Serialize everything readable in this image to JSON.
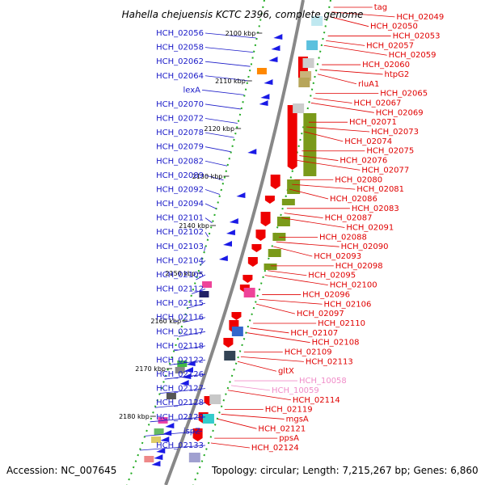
{
  "title": "Hahella chejuensis KCTC 2396, complete genome",
  "footer": {
    "accession": "Accession: NC_007645",
    "info": "Topology: circular; Length: 7,215,267 bp; Genes: 6,860"
  },
  "colors": {
    "blue_label": "#1a1ac8",
    "red_label": "#e00000",
    "pink_label": "#f08cc8",
    "backbone": "#888888",
    "tick": "#22aa22"
  },
  "kbp_ticks": [
    "2100 kbp",
    "2110 kbp",
    "2120 kbp",
    "2130 kbp",
    "2140 kbp",
    "2150 kbp",
    "2160 kbp",
    "2170 kbp",
    "2180 kbp"
  ],
  "left_labels": [
    "HCH_02056",
    "HCH_02058",
    "HCH_02062",
    "HCH_02064",
    "lexA",
    "HCH_02070",
    "HCH_02072",
    "HCH_02078",
    "HCH_02079",
    "HCH_02082",
    "HCH_02089",
    "HCH_02092",
    "HCH_02094",
    "HCH_02101",
    "HCH_02102",
    "HCH_02103",
    "HCH_02104",
    "HCH_02105",
    "HCH_02112",
    "HCH_02115",
    "HCH_02116",
    "HCH_02117",
    "HCH_02118",
    "HCH_02122",
    "HCH_02126",
    "HCH_02127",
    "HCH_02128",
    "HCH_02129",
    "ispZ",
    "HCH_02133"
  ],
  "right_labels": [
    "tag",
    "HCH_02049",
    "HCH_02050",
    "HCH_02053",
    "HCH_02057",
    "HCH_02059",
    "HCH_02060",
    "htpG2",
    "rluA1",
    "HCH_02065",
    "HCH_02067",
    "HCH_02069",
    "HCH_02071",
    "HCH_02073",
    "HCH_02074",
    "HCH_02075",
    "HCH_02076",
    "HCH_02077",
    "HCH_02080",
    "HCH_02081",
    "HCH_02086",
    "HCH_02083",
    "HCH_02087",
    "HCH_02091",
    "HCH_02088",
    "HCH_02090",
    "HCH_02093",
    "HCH_02098",
    "HCH_02095",
    "HCH_02100",
    "HCH_02096",
    "HCH_02106",
    "HCH_02097",
    "HCH_02110",
    "HCH_02107",
    "HCH_02108",
    "HCH_02109",
    "HCH_02113",
    "gltX",
    "HCH_10058",
    "HCH_10059",
    "HCH_02114",
    "HCH_02119",
    "mgsA",
    "HCH_02121",
    "ppsA",
    "HCH_02124"
  ],
  "pink_names": [
    "HCH_10058",
    "HCH_10059"
  ]
}
